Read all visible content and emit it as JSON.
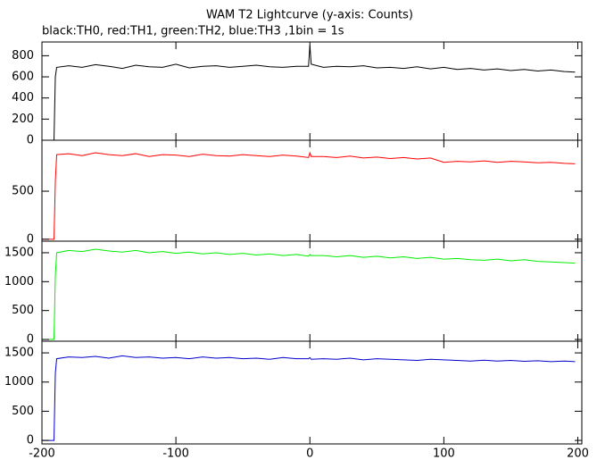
{
  "chart_data": {
    "type": "line",
    "title": "WAM T2 Lightcurve (y-axis: Counts)",
    "subtitle": "black:TH0, red:TH1, green:TH2, blue:TH3 ,1bin = 1s",
    "x": [
      -200,
      -191,
      -190,
      -189,
      -180,
      -170,
      -160,
      -150,
      -140,
      -130,
      -120,
      -110,
      -100,
      -90,
      -80,
      -70,
      -60,
      -50,
      -40,
      -30,
      -20,
      -10,
      -1,
      0,
      1,
      10,
      20,
      30,
      40,
      50,
      60,
      70,
      80,
      90,
      100,
      110,
      120,
      130,
      140,
      150,
      160,
      170,
      180,
      190,
      198
    ],
    "xlim": [
      -200,
      203
    ],
    "xticks": [
      -200,
      -100,
      0,
      100,
      200
    ],
    "series": [
      {
        "color": "#000000",
        "ylim": [
          0,
          930
        ],
        "yticks": [
          0,
          200,
          400,
          600,
          800
        ],
        "values": [
          0,
          0,
          600,
          690,
          705,
          690,
          715,
          700,
          680,
          710,
          695,
          690,
          720,
          685,
          700,
          705,
          690,
          700,
          710,
          695,
          690,
          700,
          700,
          900,
          720,
          690,
          700,
          695,
          705,
          685,
          690,
          680,
          695,
          675,
          690,
          670,
          680,
          665,
          675,
          660,
          670,
          655,
          665,
          650,
          645
        ]
      },
      {
        "color": "#ff0000",
        "ylim": [
          -20,
          1030
        ],
        "yticks": [
          0,
          500
        ],
        "values": [
          0,
          0,
          600,
          880,
          890,
          870,
          900,
          880,
          870,
          890,
          860,
          880,
          875,
          860,
          885,
          870,
          865,
          880,
          870,
          860,
          875,
          865,
          850,
          900,
          860,
          860,
          850,
          865,
          845,
          855,
          840,
          850,
          835,
          845,
          800,
          810,
          805,
          815,
          800,
          810,
          805,
          795,
          800,
          790,
          785
        ]
      },
      {
        "color": "#00ee00",
        "ylim": [
          -30,
          1700
        ],
        "yticks": [
          0,
          500,
          1000,
          1500
        ],
        "values": [
          0,
          0,
          1100,
          1500,
          1540,
          1520,
          1560,
          1530,
          1510,
          1540,
          1500,
          1520,
          1490,
          1510,
          1480,
          1500,
          1470,
          1490,
          1460,
          1480,
          1450,
          1470,
          1440,
          1470,
          1450,
          1450,
          1430,
          1450,
          1420,
          1440,
          1410,
          1430,
          1400,
          1420,
          1390,
          1400,
          1380,
          1370,
          1390,
          1360,
          1380,
          1350,
          1340,
          1330,
          1320
        ]
      },
      {
        "color": "#0000cc",
        "ylim": [
          -60,
          1700
        ],
        "yticks": [
          0,
          500,
          1000,
          1500
        ],
        "values": [
          0,
          0,
          1150,
          1400,
          1430,
          1420,
          1440,
          1410,
          1450,
          1420,
          1430,
          1410,
          1420,
          1400,
          1430,
          1410,
          1420,
          1400,
          1410,
          1390,
          1420,
          1400,
          1400,
          1420,
          1390,
          1400,
          1390,
          1410,
          1380,
          1400,
          1390,
          1380,
          1370,
          1390,
          1380,
          1370,
          1360,
          1375,
          1360,
          1370,
          1355,
          1365,
          1350,
          1360,
          1350
        ]
      }
    ]
  }
}
